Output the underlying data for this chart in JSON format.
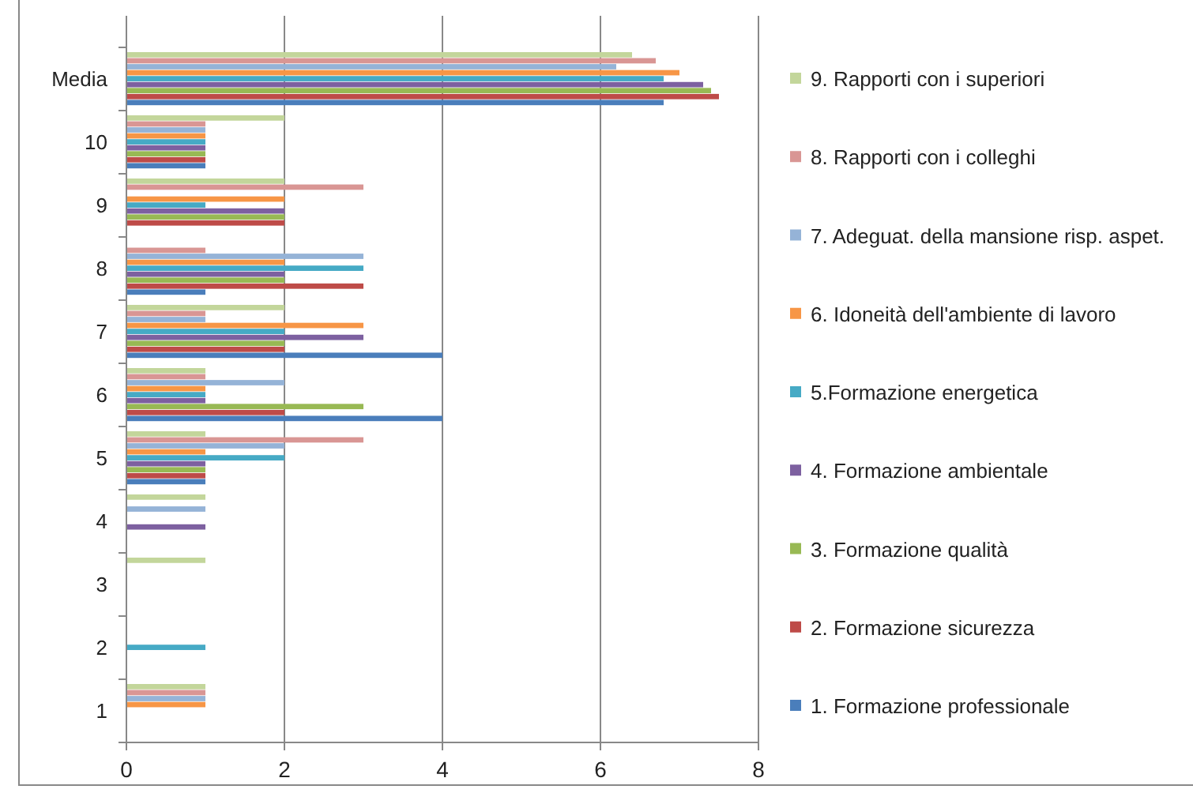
{
  "chart_data": {
    "type": "bar",
    "orientation": "horizontal",
    "categories": [
      "Media",
      "10",
      "9",
      "8",
      "7",
      "6",
      "5",
      "4",
      "3",
      "2",
      "1"
    ],
    "series": [
      {
        "name": "1. Formazione professionale",
        "color": "#4a7ebb",
        "values": [
          6.8,
          1,
          null,
          1,
          4,
          4,
          1,
          null,
          null,
          null,
          null
        ]
      },
      {
        "name": "2. Formazione sicurezza",
        "color": "#be4b48",
        "values": [
          7.5,
          1,
          2,
          3,
          2,
          2,
          1,
          null,
          null,
          null,
          null
        ]
      },
      {
        "name": "3. Formazione qualità",
        "color": "#98b954",
        "values": [
          7.4,
          1,
          2,
          2,
          2,
          3,
          1,
          null,
          null,
          null,
          null
        ]
      },
      {
        "name": "4. Formazione ambientale",
        "color": "#7d60a0",
        "values": [
          7.3,
          1,
          2,
          2,
          3,
          1,
          1,
          1,
          null,
          null,
          null
        ]
      },
      {
        "name": "5.Formazione energetica",
        "color": "#46aac5",
        "values": [
          6.8,
          1,
          1,
          3,
          2,
          1,
          2,
          null,
          null,
          1,
          null
        ]
      },
      {
        "name": "6. Idoneità dell'ambiente di lavoro",
        "color": "#f79646",
        "values": [
          7,
          1,
          2,
          2,
          3,
          1,
          1,
          null,
          null,
          null,
          1
        ]
      },
      {
        "name": "7. Adeguat. della mansione risp. aspet.",
        "color": "#95b3d7",
        "values": [
          6.2,
          1,
          null,
          3,
          1,
          2,
          2,
          1,
          null,
          null,
          1
        ]
      },
      {
        "name": "8. Rapporti con i colleghi",
        "color": "#d99694",
        "values": [
          6.7,
          1,
          3,
          1,
          1,
          1,
          3,
          null,
          null,
          null,
          1
        ]
      },
      {
        "name": "9. Rapporti con i superiori",
        "color": "#c3d69b",
        "values": [
          6.4,
          2,
          2,
          null,
          2,
          1,
          1,
          1,
          1,
          null,
          1
        ]
      }
    ],
    "xlim": [
      0,
      8
    ],
    "xticks": [
      0,
      2,
      4,
      6,
      8
    ],
    "grid": "x",
    "legend": "right"
  }
}
